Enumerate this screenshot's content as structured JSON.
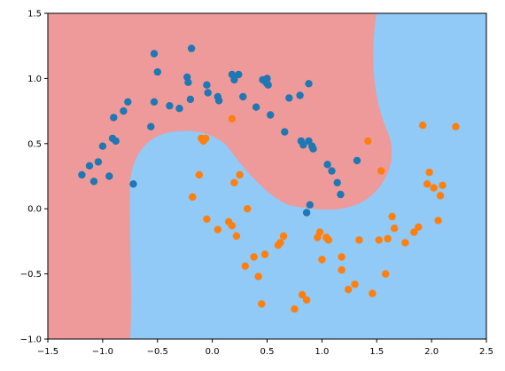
{
  "chart_data": {
    "type": "scatter",
    "title": "",
    "xlabel": "",
    "ylabel": "",
    "xlim": [
      -1.5,
      2.5
    ],
    "ylim": [
      -1.0,
      1.5
    ],
    "grid": false,
    "legend": "none",
    "x_ticks": [
      "−1.5",
      "−1.0",
      "−0.5",
      "0.0",
      "0.5",
      "1.0",
      "1.5",
      "2.0",
      "2.5"
    ],
    "y_ticks": [
      "−1.0",
      "−0.5",
      "0.0",
      "0.5",
      "1.0",
      "1.5"
    ],
    "x_tick_values": [
      -1.5,
      -1.0,
      -0.5,
      0.0,
      0.5,
      1.0,
      1.5,
      2.0,
      2.5
    ],
    "y_tick_values": [
      -1.0,
      -0.5,
      0.0,
      0.5,
      1.0,
      1.5
    ],
    "background_regions": [
      {
        "class": 0,
        "color": "#ee9a9a"
      },
      {
        "class": 1,
        "color": "#91c9f7"
      }
    ],
    "series": [
      {
        "color": "#1f77b4",
        "x": [
          -1.19,
          -1.12,
          -1.08,
          -1.04,
          -1.0,
          -0.94,
          -0.91,
          -0.9,
          -0.88,
          -0.81,
          -0.77,
          -0.72,
          -0.56,
          -0.53,
          -0.53,
          -0.5,
          -0.39,
          -0.3,
          -0.23,
          -0.22,
          -0.2,
          -0.19,
          -0.05,
          -0.04,
          0.05,
          0.06,
          0.18,
          0.2,
          0.24,
          0.28,
          0.4,
          0.46,
          0.49,
          0.5,
          0.5,
          0.51,
          0.53,
          0.66,
          0.7,
          0.8,
          0.81,
          0.83,
          0.88,
          0.88,
          0.91,
          0.92,
          1.05,
          1.09,
          1.14,
          1.17,
          1.32,
          0.86,
          0.89
        ],
        "y": [
          0.26,
          0.33,
          0.21,
          0.36,
          0.48,
          0.25,
          0.54,
          0.7,
          0.52,
          0.75,
          0.82,
          0.19,
          0.63,
          0.82,
          1.19,
          1.05,
          0.79,
          0.77,
          1.01,
          0.97,
          0.84,
          1.23,
          0.95,
          0.89,
          0.86,
          0.83,
          1.03,
          0.99,
          1.03,
          0.86,
          0.78,
          0.99,
          0.97,
          0.96,
          1.0,
          0.95,
          0.72,
          0.59,
          0.85,
          0.87,
          0.52,
          0.49,
          0.52,
          0.96,
          0.48,
          0.46,
          0.34,
          0.29,
          0.2,
          0.11,
          0.37,
          -0.03,
          0.03
        ]
      },
      {
        "color": "#ff7f0e",
        "x": [
          -0.12,
          -0.1,
          -0.08,
          -0.06,
          -0.18,
          -0.05,
          0.05,
          0.15,
          0.18,
          0.2,
          0.25,
          0.18,
          0.22,
          0.3,
          0.32,
          0.38,
          0.42,
          0.45,
          0.48,
          0.6,
          0.62,
          0.65,
          0.75,
          0.82,
          0.86,
          0.96,
          0.98,
          1.0,
          1.04,
          1.06,
          1.18,
          1.18,
          1.24,
          1.3,
          1.34,
          1.42,
          1.46,
          1.52,
          1.54,
          1.58,
          1.6,
          1.64,
          1.66,
          1.76,
          1.84,
          1.88,
          1.92,
          1.96,
          1.98,
          2.02,
          2.06,
          2.08,
          2.1,
          2.22
        ],
        "y": [
          0.26,
          0.54,
          0.52,
          0.54,
          0.09,
          -0.08,
          -0.16,
          -0.1,
          0.69,
          0.2,
          0.26,
          -0.13,
          -0.21,
          -0.44,
          0.0,
          -0.37,
          -0.52,
          -0.73,
          -0.35,
          -0.28,
          -0.26,
          -0.21,
          -0.77,
          -0.66,
          -0.7,
          -0.22,
          -0.18,
          -0.39,
          -0.22,
          -0.24,
          -0.37,
          -0.47,
          -0.62,
          -0.58,
          -0.24,
          0.52,
          -0.65,
          -0.24,
          0.29,
          -0.5,
          -0.23,
          -0.06,
          -0.15,
          -0.26,
          -0.18,
          -0.14,
          0.64,
          0.19,
          0.28,
          0.16,
          -0.09,
          0.1,
          0.18,
          0.63
        ]
      }
    ]
  }
}
